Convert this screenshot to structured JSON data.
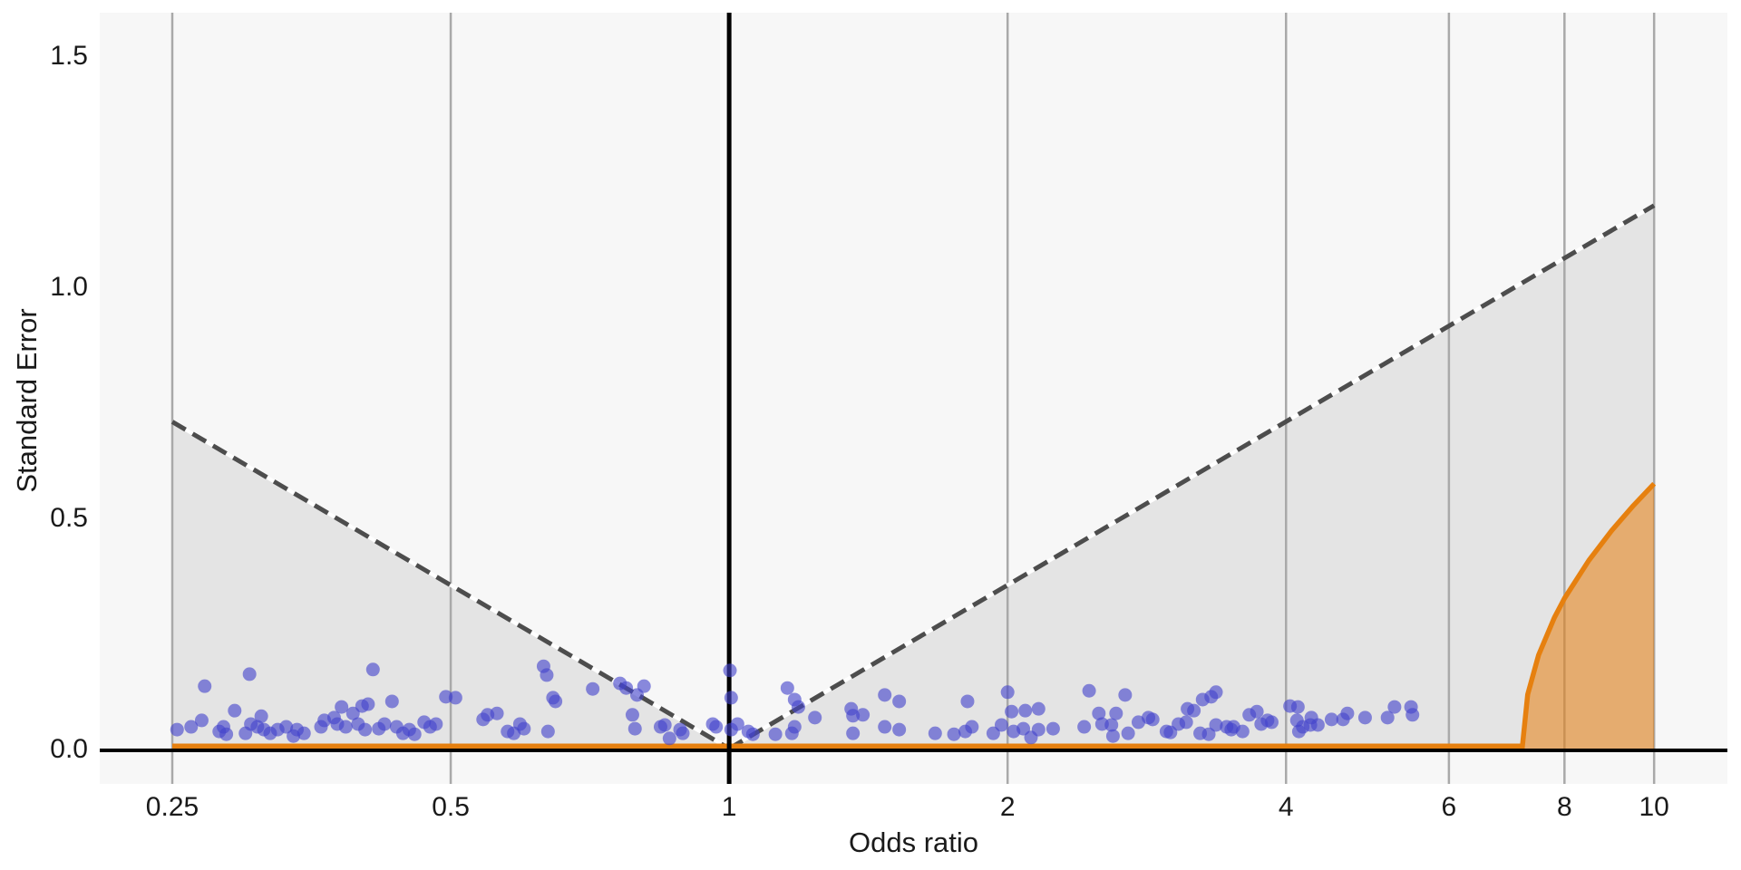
{
  "chart_data": {
    "type": "scatter",
    "subtype": "contour-enhanced funnel plot",
    "title": "",
    "xlabel": "Odds ratio",
    "ylabel": "Standard Error",
    "x_scale": "log",
    "xlim": [
      0.21,
      12.0
    ],
    "ylim": [
      -0.08,
      1.59
    ],
    "x_ticks": [
      0.25,
      0.5,
      1,
      2,
      4,
      6,
      8,
      10
    ],
    "x_tick_labels": [
      "0.25",
      "0.5",
      "1",
      "2",
      "4",
      "6",
      "8",
      "10"
    ],
    "y_ticks": [
      0,
      0.5,
      1,
      1.5
    ],
    "y_tick_labels": [
      "0.0",
      "0.5",
      "1.0",
      "1.5"
    ],
    "grid": "vertical-only",
    "legend": "none",
    "reference_line_or": 1,
    "funnel_contour": {
      "z": 1.96,
      "vertex": [
        1,
        0
      ],
      "left_end": [
        0.25,
        0.707
      ],
      "right_end": [
        10,
        1.175
      ],
      "line_style": "dashed over white underlay",
      "shaded_region": "outside contour (p < 0.05), clipped to or in [0.25, 10], se >= 0"
    },
    "orange_curve": {
      "flat_segment_or": [
        0.25,
        7.2
      ],
      "flat_se": 0.005,
      "rise_points": [
        [
          7.2,
          0
        ],
        [
          7.3,
          0.117
        ],
        [
          7.5,
          0.202
        ],
        [
          7.8,
          0.283
        ],
        [
          8.0,
          0.325
        ],
        [
          8.5,
          0.407
        ],
        [
          9.0,
          0.472
        ],
        [
          9.5,
          0.526
        ],
        [
          10.0,
          0.573
        ]
      ],
      "fill_region": "under rising curve down to se=0, or in [7.2,10]"
    },
    "points": [
      [
        0.253,
        0.041
      ],
      [
        0.262,
        0.047
      ],
      [
        0.269,
        0.061
      ],
      [
        0.271,
        0.135
      ],
      [
        0.281,
        0.037
      ],
      [
        0.284,
        0.047
      ],
      [
        0.286,
        0.031
      ],
      [
        0.292,
        0.082
      ],
      [
        0.3,
        0.033
      ],
      [
        0.303,
        0.161
      ],
      [
        0.304,
        0.053
      ],
      [
        0.309,
        0.047
      ],
      [
        0.312,
        0.07
      ],
      [
        0.314,
        0.041
      ],
      [
        0.319,
        0.033
      ],
      [
        0.325,
        0.041
      ],
      [
        0.332,
        0.047
      ],
      [
        0.338,
        0.027
      ],
      [
        0.341,
        0.041
      ],
      [
        0.347,
        0.033
      ],
      [
        0.362,
        0.047
      ],
      [
        0.365,
        0.061
      ],
      [
        0.374,
        0.067
      ],
      [
        0.377,
        0.053
      ],
      [
        0.381,
        0.09
      ],
      [
        0.385,
        0.047
      ],
      [
        0.392,
        0.076
      ],
      [
        0.397,
        0.053
      ],
      [
        0.401,
        0.092
      ],
      [
        0.404,
        0.041
      ],
      [
        0.407,
        0.096
      ],
      [
        0.412,
        0.171
      ],
      [
        0.418,
        0.043
      ],
      [
        0.424,
        0.053
      ],
      [
        0.432,
        0.102
      ],
      [
        0.437,
        0.047
      ],
      [
        0.444,
        0.033
      ],
      [
        0.451,
        0.041
      ],
      [
        0.457,
        0.031
      ],
      [
        0.468,
        0.057
      ],
      [
        0.475,
        0.047
      ],
      [
        0.482,
        0.053
      ],
      [
        0.494,
        0.112
      ],
      [
        0.506,
        0.11
      ],
      [
        0.542,
        0.063
      ],
      [
        0.548,
        0.073
      ],
      [
        0.561,
        0.076
      ],
      [
        0.576,
        0.037
      ],
      [
        0.585,
        0.033
      ],
      [
        0.594,
        0.053
      ],
      [
        0.6,
        0.043
      ],
      [
        0.63,
        0.178
      ],
      [
        0.635,
        0.159
      ],
      [
        0.637,
        0.037
      ],
      [
        0.645,
        0.11
      ],
      [
        0.649,
        0.102
      ],
      [
        0.712,
        0.129
      ],
      [
        0.762,
        0.141
      ],
      [
        0.774,
        0.131
      ],
      [
        0.786,
        0.073
      ],
      [
        0.791,
        0.043
      ],
      [
        0.795,
        0.116
      ],
      [
        0.809,
        0.135
      ],
      [
        0.843,
        0.047
      ],
      [
        0.852,
        0.051
      ],
      [
        0.862,
        0.022
      ],
      [
        0.885,
        0.041
      ],
      [
        0.891,
        0.033
      ],
      [
        0.96,
        0.053
      ],
      [
        0.968,
        0.047
      ],
      [
        1.002,
        0.169
      ],
      [
        1.005,
        0.11
      ],
      [
        1.005,
        0.041
      ],
      [
        1.021,
        0.053
      ],
      [
        1.049,
        0.037
      ],
      [
        1.061,
        0.031
      ],
      [
        1.122,
        0.031
      ],
      [
        1.156,
        0.131
      ],
      [
        1.169,
        0.033
      ],
      [
        1.177,
        0.106
      ],
      [
        1.177,
        0.047
      ],
      [
        1.188,
        0.09
      ],
      [
        1.238,
        0.067
      ],
      [
        1.355,
        0.086
      ],
      [
        1.361,
        0.071
      ],
      [
        1.361,
        0.033
      ],
      [
        1.395,
        0.073
      ],
      [
        1.473,
        0.116
      ],
      [
        1.473,
        0.047
      ],
      [
        1.527,
        0.102
      ],
      [
        1.527,
        0.041
      ],
      [
        1.67,
        0.033
      ],
      [
        1.75,
        0.031
      ],
      [
        1.8,
        0.037
      ],
      [
        1.81,
        0.102
      ],
      [
        1.83,
        0.047
      ],
      [
        1.93,
        0.033
      ],
      [
        1.97,
        0.051
      ],
      [
        2.0,
        0.122
      ],
      [
        2.02,
        0.08
      ],
      [
        2.03,
        0.037
      ],
      [
        2.08,
        0.043
      ],
      [
        2.09,
        0.082
      ],
      [
        2.12,
        0.024
      ],
      [
        2.16,
        0.086
      ],
      [
        2.16,
        0.041
      ],
      [
        2.24,
        0.043
      ],
      [
        2.42,
        0.047
      ],
      [
        2.45,
        0.125
      ],
      [
        2.51,
        0.076
      ],
      [
        2.53,
        0.053
      ],
      [
        2.59,
        0.051
      ],
      [
        2.6,
        0.027
      ],
      [
        2.62,
        0.076
      ],
      [
        2.68,
        0.116
      ],
      [
        2.7,
        0.033
      ],
      [
        2.77,
        0.057
      ],
      [
        2.84,
        0.067
      ],
      [
        2.87,
        0.063
      ],
      [
        2.97,
        0.037
      ],
      [
        3.0,
        0.035
      ],
      [
        3.06,
        0.053
      ],
      [
        3.12,
        0.057
      ],
      [
        3.13,
        0.086
      ],
      [
        3.18,
        0.082
      ],
      [
        3.23,
        0.033
      ],
      [
        3.25,
        0.106
      ],
      [
        3.3,
        0.031
      ],
      [
        3.32,
        0.112
      ],
      [
        3.36,
        0.122
      ],
      [
        3.36,
        0.051
      ],
      [
        3.45,
        0.047
      ],
      [
        3.49,
        0.041
      ],
      [
        3.51,
        0.047
      ],
      [
        3.59,
        0.037
      ],
      [
        3.65,
        0.073
      ],
      [
        3.72,
        0.08
      ],
      [
        3.76,
        0.053
      ],
      [
        3.82,
        0.061
      ],
      [
        3.86,
        0.057
      ],
      [
        4.04,
        0.092
      ],
      [
        4.11,
        0.061
      ],
      [
        4.12,
        0.09
      ],
      [
        4.13,
        0.037
      ],
      [
        4.17,
        0.047
      ],
      [
        4.25,
        0.051
      ],
      [
        4.26,
        0.067
      ],
      [
        4.33,
        0.051
      ],
      [
        4.48,
        0.063
      ],
      [
        4.61,
        0.063
      ],
      [
        4.66,
        0.076
      ],
      [
        4.87,
        0.067
      ],
      [
        5.15,
        0.067
      ],
      [
        5.24,
        0.09
      ],
      [
        5.46,
        0.09
      ],
      [
        5.48,
        0.073
      ]
    ],
    "colors": {
      "panel_bg": "#f7f7f7",
      "shaded_fill": "#e4e4e4",
      "gridline": "#a9a9a9",
      "contour_dash": "#4d4d4d",
      "contour_underlay": "#ffffff",
      "reference_line": "#000000",
      "axis_line": "#000000",
      "orange_stroke": "#e6800f",
      "orange_fill": "rgba(230,126,14,0.55)",
      "point_fill": "#4444cc",
      "point_opacity": 0.62,
      "label_color": "#1a1a1a"
    }
  }
}
